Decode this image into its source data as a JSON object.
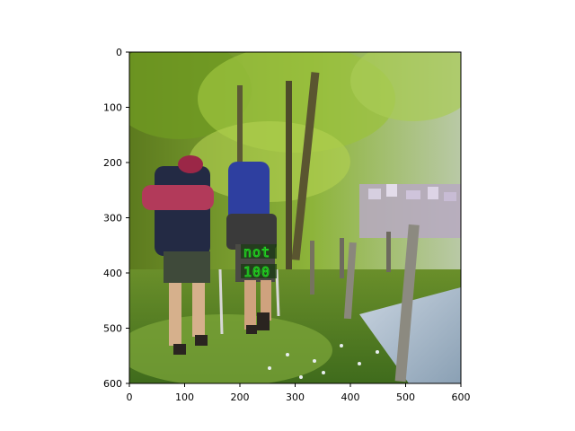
{
  "figure": {
    "x_ticks": [
      "0",
      "100",
      "200",
      "300",
      "400",
      "500",
      "600"
    ],
    "y_ticks": [
      "0",
      "100",
      "200",
      "300",
      "400",
      "500",
      "600"
    ],
    "x_range": [
      0,
      600
    ],
    "y_range": [
      0,
      600
    ],
    "y_axis_inverted": true
  },
  "image": {
    "subject": "two hikers with large backpacks walking on a grassy forest trail",
    "overlay": {
      "lines": [
        "not",
        "100"
      ],
      "color": "#20d020"
    }
  }
}
